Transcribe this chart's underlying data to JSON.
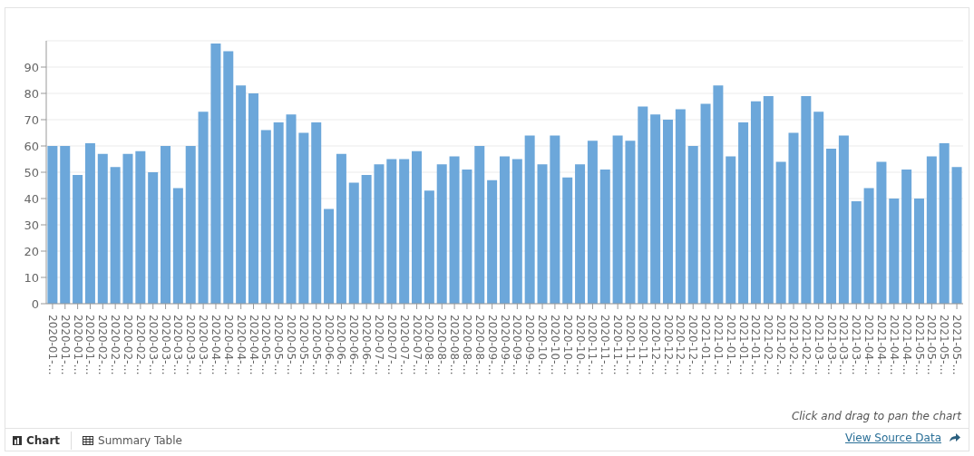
{
  "chart_data": {
    "type": "bar",
    "categories": [
      "2020-01-…",
      "2020-01-…",
      "2020-01-…",
      "2020-01-…",
      "2020-02-…",
      "2020-02-…",
      "2020-02-…",
      "2020-02-…",
      "2020-03-…",
      "2020-03-…",
      "2020-03-…",
      "2020-03-…",
      "2020-03-…",
      "2020-04-…",
      "2020-04-…",
      "2020-04-…",
      "2020-04-…",
      "2020-05-…",
      "2020-05-…",
      "2020-05-…",
      "2020-05-…",
      "2020-05-…",
      "2020-06-…",
      "2020-06-…",
      "2020-06-…",
      "2020-06-…",
      "2020-07-…",
      "2020-07-…",
      "2020-07-…",
      "2020-07-…",
      "2020-08-…",
      "2020-08-…",
      "2020-08-…",
      "2020-08-…",
      "2020-08-…",
      "2020-09-…",
      "2020-09-…",
      "2020-09-…",
      "2020-09-…",
      "2020-10-…",
      "2020-10-…",
      "2020-10-…",
      "2020-10-…",
      "2020-11-…",
      "2020-11-…",
      "2020-11-…",
      "2020-11-…",
      "2020-11-…",
      "2020-12-…",
      "2020-12-…",
      "2020-12-…",
      "2020-12-…",
      "2021-01-…",
      "2021-01-…",
      "2021-01-…",
      "2021-01-…",
      "2021-01-…",
      "2021-02-…",
      "2021-02-…",
      "2021-02-…",
      "2021-02-…",
      "2021-03-…",
      "2021-03-…",
      "2021-03-…",
      "2021-03-…",
      "2021-04-…",
      "2021-04-…",
      "2021-04-…",
      "2021-04-…",
      "2021-05-…",
      "2021-05-…",
      "2021-05-…",
      "2021-05-…"
    ],
    "values": [
      60,
      60,
      49,
      61,
      57,
      52,
      57,
      58,
      50,
      60,
      44,
      60,
      73,
      99,
      96,
      83,
      80,
      66,
      69,
      72,
      65,
      69,
      36,
      57,
      46,
      49,
      53,
      55,
      55,
      58,
      43,
      53,
      56,
      51,
      60,
      47,
      56,
      55,
      64,
      53,
      64,
      48,
      53,
      62,
      51,
      64,
      62,
      75,
      72,
      70,
      74,
      60,
      76,
      83,
      56,
      69,
      77,
      79,
      54,
      65,
      79,
      73,
      59,
      64,
      39,
      44,
      54,
      40,
      51,
      40,
      56,
      61,
      52
    ],
    "color": "#6ca7da",
    "ylim": [
      0,
      100
    ],
    "yticks": [
      0,
      10,
      20,
      30,
      40,
      50,
      60,
      70,
      80,
      90
    ],
    "grid": "y",
    "annotations": [
      "Click and drag to pan the chart",
      "Chart",
      "Summary Table",
      "View Source Data"
    ]
  }
}
